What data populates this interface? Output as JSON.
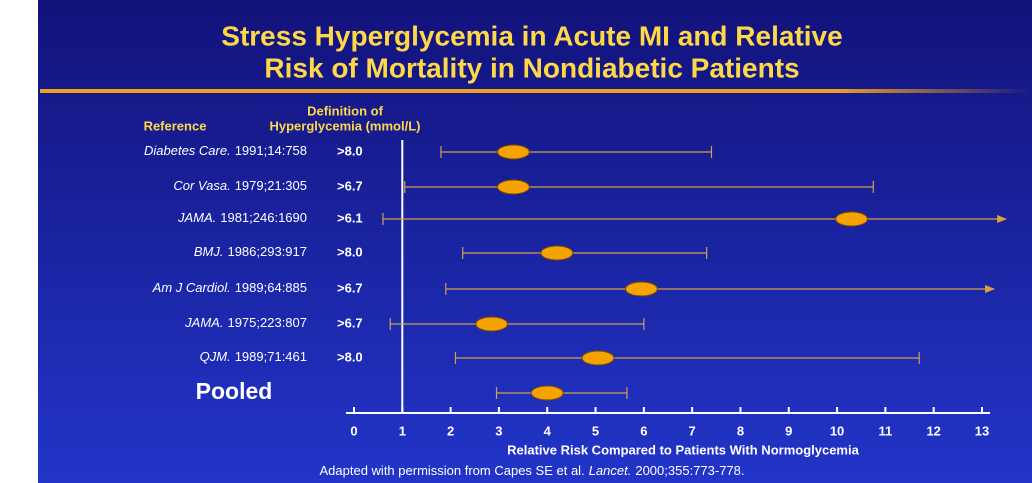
{
  "chart_data": {
    "type": "forest",
    "title": [
      "Stress Hyperglycemia in Acute MI and Relative",
      "Risk of Mortality in Nondiabetic Patients"
    ],
    "reference_header": "Reference",
    "definition_header": [
      "Definition of",
      "Hyperglycemia (mmol/L)"
    ],
    "rows": [
      {
        "journal": "Diabetes Care.",
        "citation": "1991;14:758",
        "definition": ">8.0",
        "lower": 1.8,
        "estimate": 3.3,
        "upper": 7.4
      },
      {
        "journal": "Cor Vasa.",
        "citation": "1979;21:305",
        "definition": ">6.7",
        "lower": 1.05,
        "estimate": 3.3,
        "upper": 10.75
      },
      {
        "journal": "JAMA.",
        "citation": "1981;246:1690",
        "definition": ">6.1",
        "lower": 0.6,
        "estimate": 10.3,
        "upper": 13.5
      },
      {
        "journal": "BMJ.",
        "citation": "1986;293:917",
        "definition": ">8.0",
        "lower": 2.25,
        "estimate": 4.2,
        "upper": 7.3
      },
      {
        "journal": "Am J Cardiol.",
        "citation": "1989;64:885",
        "definition": ">6.7",
        "lower": 1.9,
        "estimate": 5.95,
        "upper": 13.25
      },
      {
        "journal": "JAMA.",
        "citation": "1975;223:807",
        "definition": ">6.7",
        "lower": 0.75,
        "estimate": 2.85,
        "upper": 6.0
      },
      {
        "journal": "QJM.",
        "citation": "1989;71:461",
        "definition": ">8.0",
        "lower": 2.1,
        "estimate": 5.05,
        "upper": 11.7
      }
    ],
    "pooled": {
      "label": "Pooled",
      "lower": 2.95,
      "estimate": 4.0,
      "upper": 5.65
    },
    "reference_line": 1,
    "xlim": [
      0,
      13
    ],
    "xticks": [
      0,
      1,
      2,
      3,
      4,
      5,
      6,
      7,
      8,
      9,
      10,
      11,
      12,
      13
    ],
    "xlabel": "Relative Risk Compared to Patients With Normoglycemia",
    "marker_color": "#f5a300",
    "footnote": {
      "text": "Adapted with permission from Capes SE et al.",
      "journal": "Lancet.",
      "citation": "2000;355:773-778."
    }
  }
}
